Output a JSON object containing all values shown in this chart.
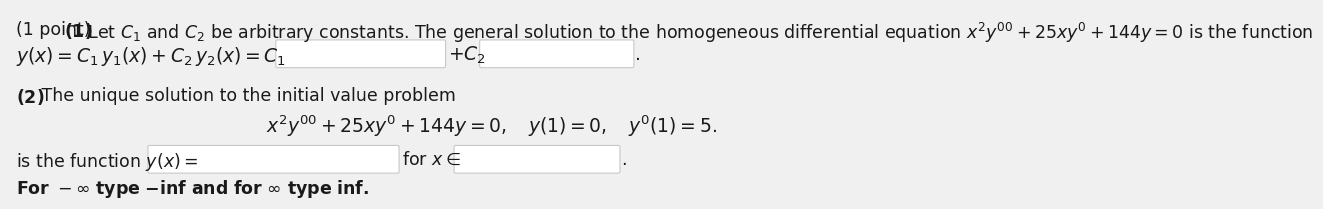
{
  "background_color": "#f0f0f0",
  "text_color": "#1a1a1a",
  "bold_color": "#000000",
  "box_facecolor": "#ffffff",
  "box_edgecolor": "#c8c8c8",
  "line1_normal": "(1 point) ",
  "line1_bold": "(1)",
  "line1_rest": " Let $C_1$ and $C_2$ be arbitrary constants. The general solution to the homogeneous differential equation $x^2y'' + 25xy' + 144y = 0$ is the function",
  "line2": "$y(x) = C_1\\, y_1(x) + C_2\\, y_2(x) = C_1$",
  "line2_c2": "$+C_2$",
  "line3_bold": "(2)",
  "line3_rest": " The unique solution to the initial value problem",
  "line4": "$x^2y'' + 25xy' + 144y = 0, \\quad y(1) = 0, \\quad y'(1) = 5.$",
  "line5a": "is the function $y(x) =$",
  "line5b": "for $x \\in$",
  "line6": "For $-\\infty$ type -inf and for $\\infty$ type inf.",
  "fs": 12.5,
  "fs_eq": 13.5
}
